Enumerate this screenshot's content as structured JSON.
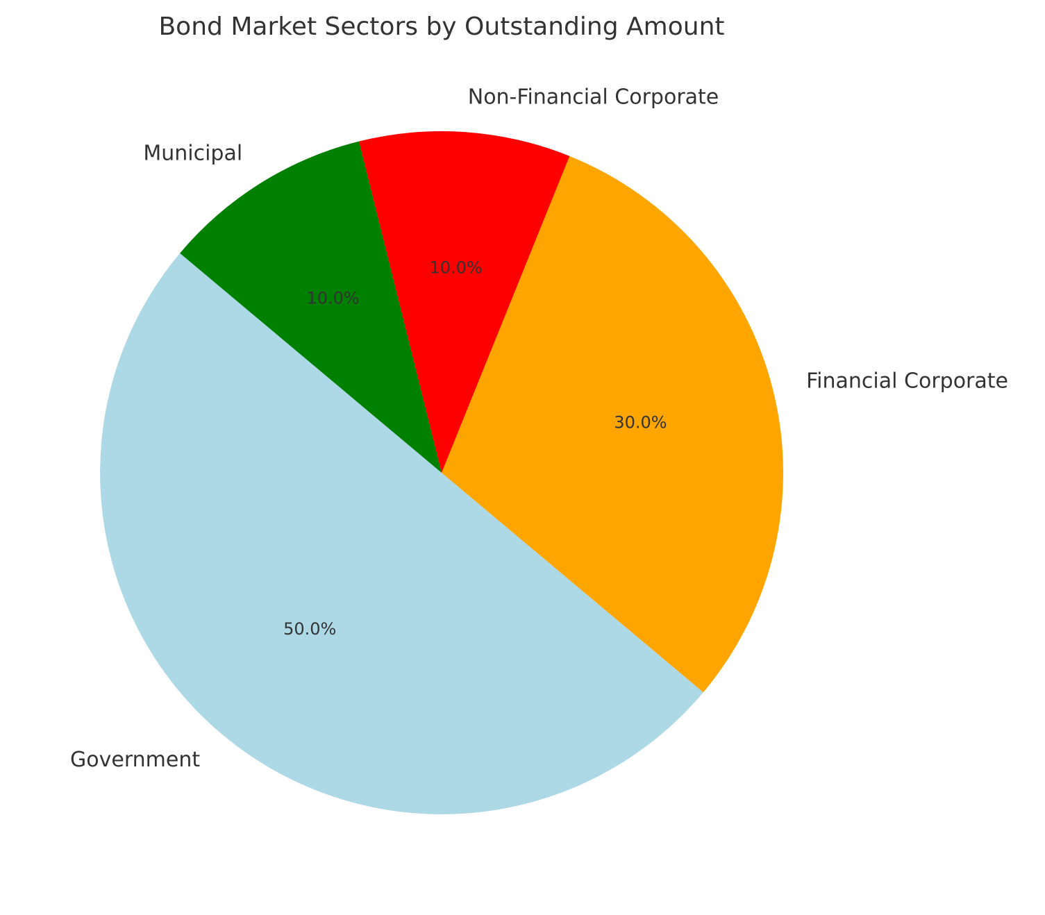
{
  "chart_data": {
    "type": "pie",
    "title": "Bond Market Sectors by Outstanding Amount",
    "start_angle": 140,
    "direction": "counterclockwise",
    "slices": [
      {
        "label": "Government",
        "value": 50,
        "pct_label": "50.0%",
        "color": "#ADD8E6"
      },
      {
        "label": "Financial Corporate",
        "value": 30,
        "pct_label": "30.0%",
        "color": "#FFA500"
      },
      {
        "label": "Non-Financial Corporate",
        "value": 10,
        "pct_label": "10.0%",
        "color": "#FF0000"
      },
      {
        "label": "Municipal",
        "value": 10,
        "pct_label": "10.0%",
        "color": "#008000"
      }
    ]
  }
}
